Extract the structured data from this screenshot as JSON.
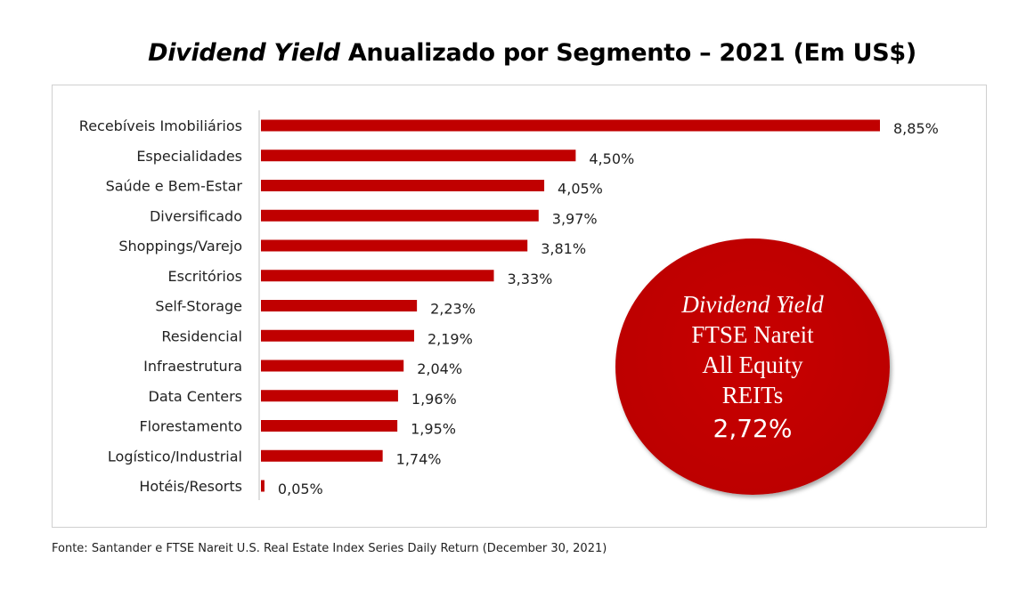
{
  "chart_data": {
    "type": "bar",
    "orientation": "horizontal",
    "title_italic": "Dividend Yield",
    "title_rest": " Anualizado por Segmento – 2021 (Em US$)",
    "categories": [
      "Recebíveis Imobiliários",
      "Especialidades",
      "Saúde e Bem-Estar",
      "Diversificado",
      "Shoppings/Varejo",
      "Escritórios",
      "Self-Storage",
      "Residencial",
      "Infraestrutura",
      "Data Centers",
      "Florestamento",
      "Logístico/Industrial",
      "Hotéis/Resorts"
    ],
    "values": [
      8.85,
      4.5,
      4.05,
      3.97,
      3.81,
      3.33,
      2.23,
      2.19,
      2.04,
      1.96,
      1.95,
      1.74,
      0.05
    ],
    "data_labels": [
      "8,85%",
      "4,50%",
      "4,05%",
      "3,97%",
      "3,81%",
      "3,33%",
      "2,23%",
      "2,19%",
      "2,04%",
      "1,96%",
      "1,95%",
      "1,74%",
      "0,05%"
    ],
    "unit": "%",
    "xlim": [
      0,
      8.85
    ],
    "grid": false,
    "bar_color": "#c00000",
    "annotation": {
      "line1": "Dividend Yield",
      "line2": "FTSE Nareit",
      "line3": "All Equity",
      "line4": "REITs",
      "value": "2,72%",
      "color": "#c00000"
    }
  },
  "footer": "Fonte: Santander e FTSE Nareit U.S. Real Estate Index Series Daily Return (December 30, 2021)"
}
